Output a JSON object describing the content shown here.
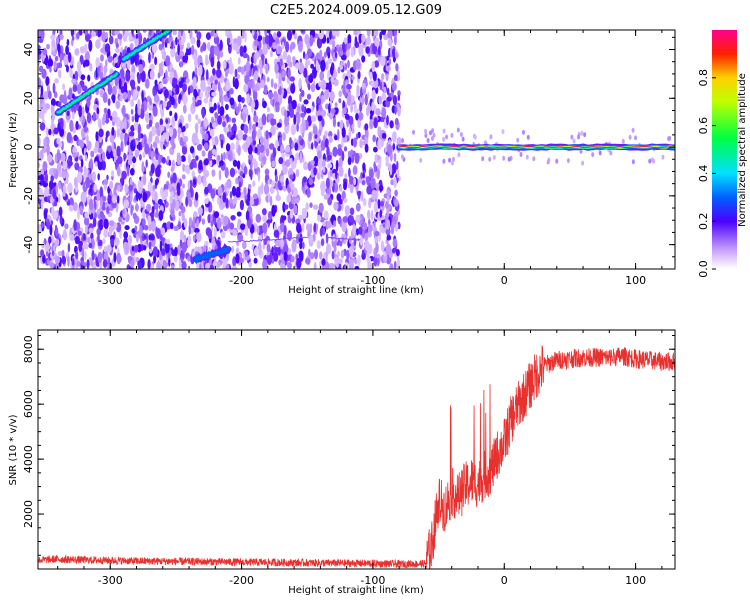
{
  "title": "C2E5.2024.009.05.12.G09",
  "colors": {
    "snr_line": "#e8302e",
    "axis": "#000000",
    "background": "#ffffff"
  },
  "chart_data": [
    {
      "type": "heatmap",
      "xlabel": "Height of straight line (km)",
      "ylabel": "Frequency (Hz)",
      "xlim": [
        -355,
        130
      ],
      "ylim": [
        -50,
        48
      ],
      "x_ticks": [
        -300,
        -200,
        -100,
        0,
        100
      ],
      "x_tick_labels": [
        "-300",
        "-200",
        "-100",
        "0",
        "100"
      ],
      "y_ticks": [
        -40,
        -20,
        0,
        20,
        40
      ],
      "y_tick_labels": [
        "-40",
        "-20",
        "0",
        "20",
        "40"
      ],
      "noise_region_x": [
        -355,
        -80
      ],
      "ridges": [
        {
          "x": [
            -340,
            -295
          ],
          "y": [
            14,
            30
          ],
          "peak_amplitude": 0.5
        },
        {
          "x": [
            -290,
            -255
          ],
          "y": [
            36,
            48
          ],
          "peak_amplitude": 0.45
        },
        {
          "x": [
            -235,
            -210
          ],
          "y": [
            -46,
            -42
          ],
          "peak_amplitude": 0.3
        },
        {
          "x": [
            -210,
            -150
          ],
          "y": [
            -39,
            -37
          ],
          "peak_amplitude": 0.15
        },
        {
          "x": [
            -135,
            -110
          ],
          "y": [
            -37,
            -38
          ],
          "peak_amplitude": 0.15
        },
        {
          "x": [
            -80,
            130
          ],
          "y": [
            0,
            0
          ],
          "peak_amplitude": 0.95
        }
      ],
      "colorbar": {
        "label": "Normalized spectral amplitude",
        "range": [
          0,
          1
        ],
        "ticks": [
          0,
          0.2,
          0.4,
          0.6,
          0.8
        ],
        "tick_labels": [
          "0.0",
          "0.2",
          "0.4",
          "0.6",
          "0.8"
        ]
      }
    },
    {
      "type": "line",
      "xlabel": "Height of straight line (km)",
      "ylabel": "SNR (10 * v/v)",
      "xlim": [
        -355,
        130
      ],
      "ylim": [
        0,
        8700
      ],
      "x_ticks": [
        -300,
        -200,
        -100,
        0,
        100
      ],
      "x_tick_labels": [
        "-300",
        "-200",
        "-100",
        "0",
        "100"
      ],
      "y_ticks": [
        2000,
        4000,
        6000,
        8000
      ],
      "y_tick_labels": [
        "2000",
        "4000",
        "6000",
        "8000"
      ],
      "series": [
        {
          "x": [
            -355,
            -340,
            -320,
            -300,
            -280,
            -260,
            -240,
            -220,
            -200,
            -180,
            -160,
            -140,
            -120,
            -100,
            -80,
            -60,
            -55,
            -50,
            -45,
            -40,
            -35,
            -30,
            -25,
            -20,
            -15,
            -10,
            -5,
            0,
            5,
            10,
            15,
            20,
            25,
            30,
            40,
            50,
            60,
            70,
            80,
            90,
            100,
            110,
            120,
            130
          ],
          "y": [
            320,
            360,
            330,
            310,
            290,
            280,
            270,
            260,
            250,
            240,
            230,
            220,
            210,
            200,
            180,
            190,
            900,
            2500,
            2200,
            2800,
            2600,
            3000,
            3200,
            3100,
            3400,
            3600,
            4200,
            4600,
            5400,
            5900,
            6300,
            6700,
            7100,
            7400,
            7600,
            7650,
            7700,
            7700,
            7700,
            7750,
            7650,
            7600,
            7550,
            7550
          ]
        }
      ]
    }
  ]
}
